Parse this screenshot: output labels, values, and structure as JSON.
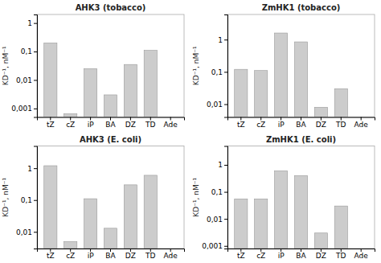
{
  "chart_data": [
    {
      "type": "bar",
      "title": "AHK3 (tobacco)",
      "y_label": "KD⁻¹, nM⁻¹",
      "categories": [
        "tZ",
        "cZ",
        "iP",
        "BA",
        "DZ",
        "TD",
        "Ade"
      ],
      "values": [
        0.2,
        0.00065,
        0.025,
        0.003,
        0.035,
        0.11,
        null
      ],
      "color": "#cccccc",
      "log": "y",
      "grid": false,
      "ylim": [
        0.0005,
        2
      ],
      "yticks": [
        {
          "value": 0.001,
          "label": "0,001"
        },
        {
          "value": 0.01,
          "label": "0,01"
        },
        {
          "value": 0.1,
          "label": "0,1"
        },
        1
      ]
    },
    {
      "type": "bar",
      "title": "ZmHK1 (tobacco)",
      "y_label": "KD⁻¹, nM⁻¹",
      "categories": [
        "tZ",
        "cZ",
        "iP",
        "BA",
        "DZ",
        "TD",
        "Ade"
      ],
      "values": [
        0.12,
        0.11,
        1.6,
        0.85,
        0.008,
        0.03,
        null
      ],
      "color": "#cccccc",
      "log": "y",
      "grid": false,
      "ylim": [
        0.004,
        6
      ],
      "yticks": [
        {
          "value": 0.01,
          "label": "0,01"
        },
        {
          "value": 0.1,
          "label": "0,1"
        },
        1
      ]
    },
    {
      "type": "bar",
      "title": "AHK3 (E. coli)",
      "y_label": "KD⁻¹, nM⁻¹",
      "categories": [
        "tZ",
        "cZ",
        "iP",
        "BA",
        "DZ",
        "TD",
        "Ade"
      ],
      "values": [
        1.2,
        0.005,
        0.11,
        0.013,
        0.3,
        0.6,
        null
      ],
      "color": "#cccccc",
      "log": "y",
      "grid": false,
      "ylim": [
        0.003,
        5
      ],
      "yticks": [
        {
          "value": 0.01,
          "label": "0,01"
        },
        {
          "value": 0.1,
          "label": "0,1"
        },
        1
      ]
    },
    {
      "type": "bar",
      "title": "ZmHK1 (E. coli)",
      "y_label": "KD⁻¹, nM⁻¹",
      "categories": [
        "tZ",
        "cZ",
        "iP",
        "BA",
        "DZ",
        "TD",
        "Ade"
      ],
      "values": [
        0.055,
        0.055,
        0.6,
        0.4,
        0.003,
        0.03,
        null
      ],
      "color": "#cccccc",
      "log": "y",
      "grid": false,
      "ylim": [
        0.0008,
        5
      ],
      "yticks": [
        {
          "value": 0.001,
          "label": "0,001"
        },
        {
          "value": 0.01,
          "label": "0,01"
        },
        {
          "value": 0.1,
          "label": "0,1"
        },
        1
      ]
    }
  ]
}
